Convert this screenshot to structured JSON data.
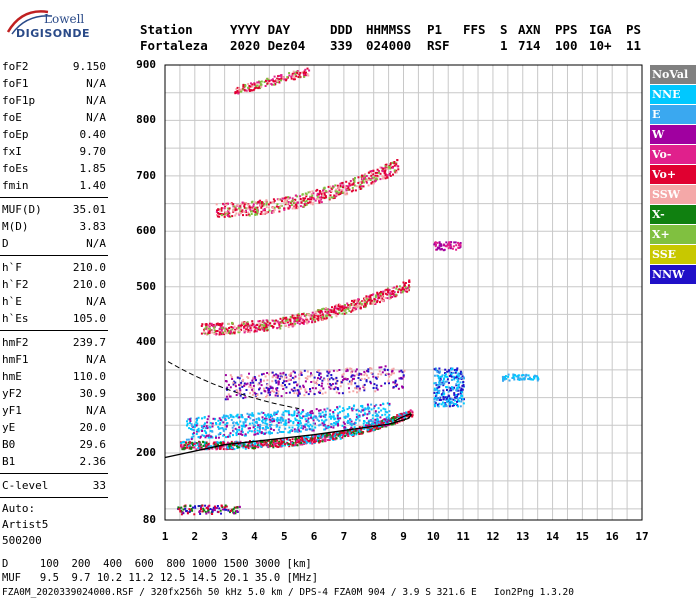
{
  "logo": {
    "line1": "Lowell",
    "line2": "DIGISONDE"
  },
  "header": {
    "station_label": "Station",
    "station": "Fortaleza",
    "date_label": "YYYY DAY",
    "date": "2020 Dez04",
    "ddd_label": "DDD",
    "ddd": "339",
    "time_label": "HHMMSS",
    "time": "024000",
    "p1_label": "P1",
    "p1": "RSF",
    "ffs_label": "FFS",
    "ffs": "",
    "s_label": "S",
    "s": "1",
    "axn_label": "AXN",
    "axn": "714",
    "pps_label": "PPS",
    "pps": "100",
    "iga_label": "IGA",
    "iga": "10+",
    "ps_label": "PS",
    "ps": "11"
  },
  "params": {
    "group1": [
      {
        "k": "foF2",
        "v": "9.150"
      },
      {
        "k": "foF1",
        "v": "N/A"
      },
      {
        "k": "foF1p",
        "v": "N/A"
      },
      {
        "k": "foE",
        "v": "N/A"
      },
      {
        "k": "foEp",
        "v": "0.40"
      },
      {
        "k": "fxI",
        "v": "9.70"
      },
      {
        "k": "foEs",
        "v": "1.85"
      },
      {
        "k": "fmin",
        "v": "1.40"
      }
    ],
    "group2": [
      {
        "k": "MUF(D)",
        "v": "35.01"
      },
      {
        "k": "M(D)",
        "v": "3.83"
      },
      {
        "k": "D",
        "v": "N/A"
      }
    ],
    "group3": [
      {
        "k": "h`F",
        "v": "210.0"
      },
      {
        "k": "h`F2",
        "v": "210.0"
      },
      {
        "k": "h`E",
        "v": "N/A"
      },
      {
        "k": "h`Es",
        "v": "105.0"
      }
    ],
    "group4": [
      {
        "k": "hmF2",
        "v": "239.7"
      },
      {
        "k": "hmF1",
        "v": "N/A"
      },
      {
        "k": "hmE",
        "v": "110.0"
      },
      {
        "k": "yF2",
        "v": "30.9"
      },
      {
        "k": "yF1",
        "v": "N/A"
      },
      {
        "k": "yE",
        "v": "20.0"
      },
      {
        "k": "B0",
        "v": "29.6"
      },
      {
        "k": "B1",
        "v": "2.36"
      }
    ],
    "group5": [
      {
        "k": "C-level",
        "v": "33"
      }
    ],
    "auto": [
      "Auto:",
      "Artist5",
      "500200"
    ]
  },
  "chart_data": {
    "type": "scatter",
    "x_ticks": [
      "1",
      "2",
      "3",
      "4",
      "5",
      "6",
      "7",
      "8",
      "9",
      "10",
      "11",
      "12",
      "13",
      "14",
      "15",
      "16",
      "17"
    ],
    "y_ticks": [
      "80",
      "200",
      "300",
      "400",
      "500",
      "600",
      "700",
      "800",
      "900"
    ],
    "xlim": [
      1,
      17
    ],
    "ylim": [
      80,
      900
    ],
    "series": [
      {
        "name": "NoVal",
        "color": "#808080"
      },
      {
        "name": "NNE",
        "color": "#00c8ff"
      },
      {
        "name": "E",
        "color": "#3aa8f0"
      },
      {
        "name": "W",
        "color": "#a000a0"
      },
      {
        "name": "Vo-",
        "color": "#e0208c"
      },
      {
        "name": "Vo+",
        "color": "#e00030"
      },
      {
        "name": "SSW",
        "color": "#f4a8a8"
      },
      {
        "name": "X-",
        "color": "#108010"
      },
      {
        "name": "X+",
        "color": "#80c040"
      },
      {
        "name": "SSE",
        "color": "#c8c800"
      },
      {
        "name": "NNW",
        "color": "#2010c8"
      }
    ]
  },
  "footer": {
    "d_line": "D     100  200  400  600  800 1000 1500 3000 [km]",
    "muf_line": "MUF   9.5  9.7 10.2 11.2 12.5 14.5 20.1 35.0 [MHz]",
    "file_line": "FZA0M_2020339024000.RSF / 320fx256h 50 kHz 5.0 km / DPS-4 FZA0M 904 / 3.9 S 321.6 E   Ion2Png 1.3.20"
  }
}
